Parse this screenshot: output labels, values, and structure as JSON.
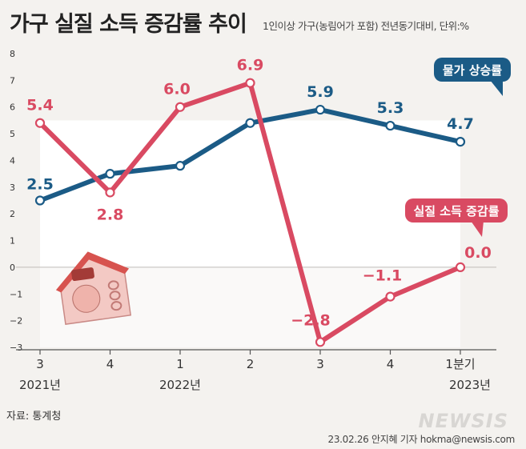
{
  "header": {
    "title": "가구 실질 소득 증감률 추이",
    "subtitle": "1인이상 가구(농림어가 포함) 전년동기대비, 단위:%"
  },
  "footer": {
    "source": "자료: 통계청",
    "credit": "23.02.26 안지혜  기자  hokma@newsis.com",
    "watermark": "NEWSIS"
  },
  "colors": {
    "inflation": "#1b5b86",
    "income": "#d94a62",
    "background": "#f4f2ef",
    "plot_area": "#ffffff"
  },
  "chart_data": {
    "type": "line",
    "categories": [
      "3",
      "4",
      "1",
      "2",
      "3",
      "4",
      "1분기"
    ],
    "year_labels": [
      {
        "index": 0,
        "label": "2021년"
      },
      {
        "index": 2,
        "label": "2022년"
      },
      {
        "index": 6,
        "label": "2023년"
      }
    ],
    "ylim": [
      -3,
      8
    ],
    "yticks": [
      8,
      7,
      6,
      5,
      4,
      3,
      2,
      1,
      0,
      -1,
      -2,
      -3
    ],
    "series": [
      {
        "name": "물가 상승률",
        "values": [
          2.5,
          3.5,
          3.8,
          5.4,
          5.9,
          5.3,
          4.7
        ],
        "labels": [
          "2.5",
          "",
          "",
          "",
          "5.9",
          "5.3",
          "4.7"
        ]
      },
      {
        "name": "실질 소득 증감률",
        "values": [
          5.4,
          2.8,
          6.0,
          6.9,
          -2.8,
          -1.1,
          0.0
        ],
        "labels": [
          "5.4",
          "2.8",
          "6.0",
          "6.9",
          "−2.8",
          "−1.1",
          "0.0"
        ]
      }
    ],
    "grid": false,
    "legend": "callouts"
  }
}
